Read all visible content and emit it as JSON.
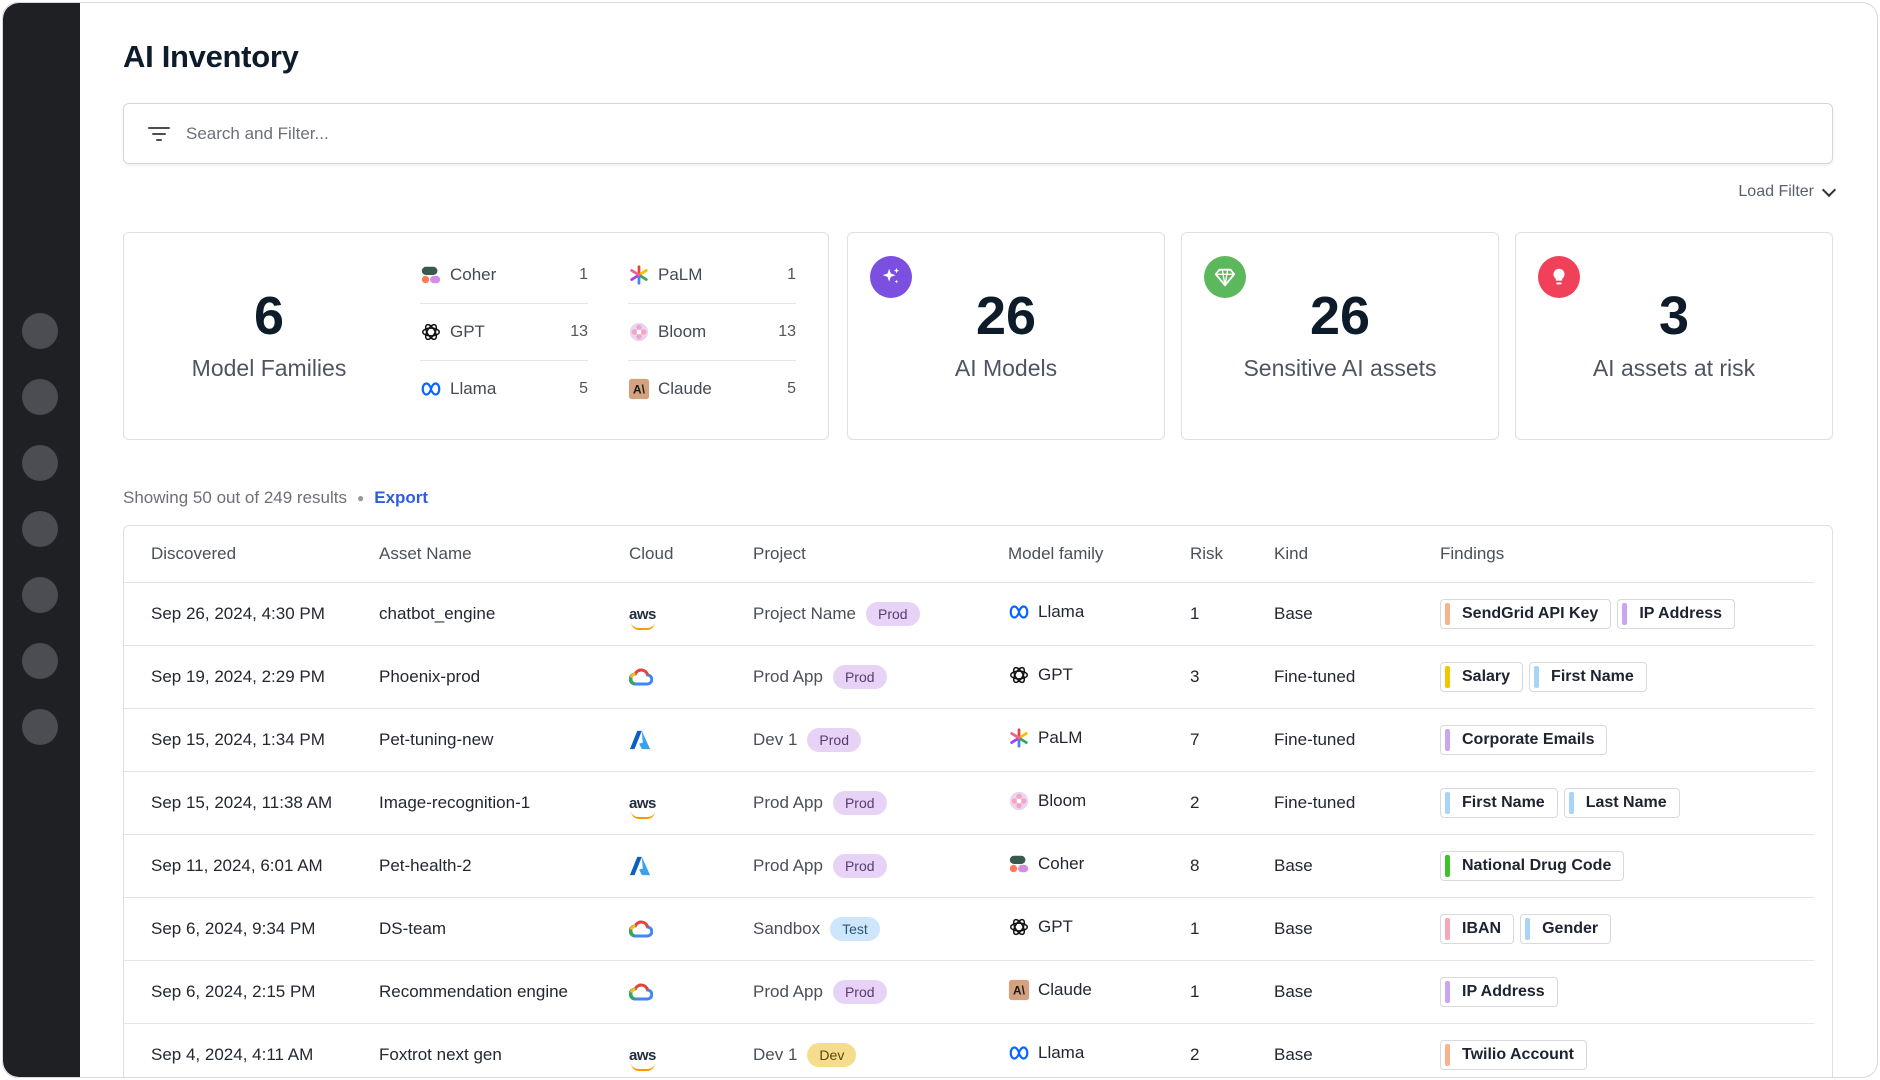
{
  "page": {
    "title": "AI Inventory"
  },
  "search": {
    "placeholder": "Search and Filter...",
    "load_filter": "Load Filter"
  },
  "summary": {
    "families_count": "6",
    "families_label": "Model Families",
    "families": [
      {
        "name": "Coher",
        "count": "1",
        "icon": "coher-icon"
      },
      {
        "name": "GPT",
        "count": "13",
        "icon": "openai-icon"
      },
      {
        "name": "Llama",
        "count": "5",
        "icon": "meta-icon"
      },
      {
        "name": "PaLM",
        "count": "1",
        "icon": "palm-icon"
      },
      {
        "name": "Bloom",
        "count": "13",
        "icon": "bloom-icon"
      },
      {
        "name": "Claude",
        "count": "5",
        "icon": "anthropic-icon"
      }
    ],
    "models": {
      "count": "26",
      "label": "AI Models",
      "icon": "sparkles-icon",
      "color": "#7b4fe0"
    },
    "sensitive": {
      "count": "26",
      "label": "Sensitive AI assets",
      "icon": "diamond-icon",
      "color": "#5cb85c"
    },
    "risk": {
      "count": "3",
      "label": "AI assets at risk",
      "icon": "lightbulb-icon",
      "color": "#f0405a"
    }
  },
  "results": {
    "text": "Showing 50 out of 249 results",
    "export": "Export"
  },
  "table": {
    "columns": [
      "Discovered",
      "Asset Name",
      "Cloud",
      "Project",
      "Model family",
      "Risk",
      "Kind",
      "Findings"
    ],
    "rows": [
      {
        "discovered": "Sep 26, 2024, 4:30 PM",
        "asset": "chatbot_engine",
        "cloud": "aws",
        "project": "Project Name",
        "env": "Prod",
        "family": "Llama",
        "risk": "1",
        "kind": "Base",
        "findings": [
          {
            "label": "SendGrid API Key",
            "color": "#f7b48a"
          },
          {
            "label": "IP Address",
            "color": "#c9a6ee"
          }
        ]
      },
      {
        "discovered": "Sep 19, 2024, 2:29 PM",
        "asset": "Phoenix-prod",
        "cloud": "gcp",
        "project": "Prod App",
        "env": "Prod",
        "family": "GPT",
        "risk": "3",
        "kind": "Fine-tuned",
        "findings": [
          {
            "label": "Salary",
            "color": "#f5c400"
          },
          {
            "label": "First Name",
            "color": "#a8d4f7"
          }
        ]
      },
      {
        "discovered": "Sep 15, 2024, 1:34 PM",
        "asset": "Pet-tuning-new",
        "cloud": "azure",
        "project": "Dev 1",
        "env": "Prod",
        "family": "PaLM",
        "risk": "7",
        "kind": "Fine-tuned",
        "findings": [
          {
            "label": "Corporate Emails",
            "color": "#c9a6ee"
          }
        ]
      },
      {
        "discovered": "Sep 15, 2024, 11:38 AM",
        "asset": "Image-recognition-1",
        "cloud": "aws",
        "project": "Prod App",
        "env": "Prod",
        "family": "Bloom",
        "risk": "2",
        "kind": "Fine-tuned",
        "findings": [
          {
            "label": "First Name",
            "color": "#a8d4f7"
          },
          {
            "label": "Last Name",
            "color": "#a8d4f7"
          }
        ]
      },
      {
        "discovered": "Sep 11, 2024, 6:01 AM",
        "asset": "Pet-health-2",
        "cloud": "azure",
        "project": "Prod App",
        "env": "Prod",
        "family": "Coher",
        "risk": "8",
        "kind": "Base",
        "findings": [
          {
            "label": "National Drug Code",
            "color": "#3cc32a"
          }
        ]
      },
      {
        "discovered": "Sep 6, 2024, 9:34 PM",
        "asset": "DS-team",
        "cloud": "gcp",
        "project": "Sandbox",
        "env": "Test",
        "family": "GPT",
        "risk": "1",
        "kind": "Base",
        "findings": [
          {
            "label": "IBAN",
            "color": "#f7a8b4"
          },
          {
            "label": "Gender",
            "color": "#a8d4f7"
          }
        ]
      },
      {
        "discovered": "Sep 6, 2024, 2:15 PM",
        "asset": "Recommendation engine",
        "cloud": "gcp",
        "project": "Prod App",
        "env": "Prod",
        "family": "Claude",
        "risk": "1",
        "kind": "Base",
        "findings": [
          {
            "label": "IP Address",
            "color": "#c9a6ee"
          }
        ]
      },
      {
        "discovered": "Sep 4, 2024, 4:11 AM",
        "asset": "Foxtrot next gen",
        "cloud": "aws",
        "project": "Dev 1",
        "env": "Dev",
        "family": "Llama",
        "risk": "2",
        "kind": "Base",
        "findings": [
          {
            "label": "Twilio Account",
            "color": "#f7b48a"
          }
        ]
      }
    ]
  }
}
